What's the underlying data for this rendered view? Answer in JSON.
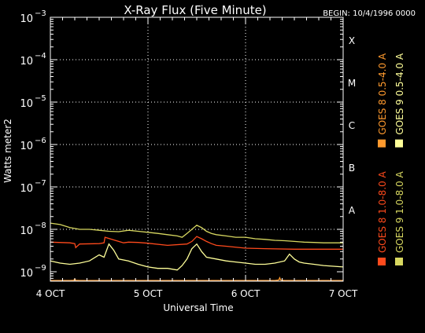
{
  "chart_data": {
    "type": "line",
    "title": "X-Ray Flux (Five Minute)",
    "begin_label": "BEGIN: 10/4/1996 0000",
    "xlabel": "Universal Time",
    "ylabel": "Watts meter2",
    "x_ticks": [
      "4 OCT",
      "5 OCT",
      "6 OCT",
      "7 OCT"
    ],
    "xlim": [
      0,
      3
    ],
    "y_scale": "log",
    "ylim": [
      6e-10,
      0.001
    ],
    "y_ticks": [
      {
        "value": 1e-09,
        "base": "10",
        "exp": "−9"
      },
      {
        "value": 1e-08,
        "base": "10",
        "exp": "−8"
      },
      {
        "value": 1e-07,
        "base": "10",
        "exp": "−7"
      },
      {
        "value": 1e-06,
        "base": "10",
        "exp": "−6"
      },
      {
        "value": 1e-05,
        "base": "10",
        "exp": "−5"
      },
      {
        "value": 0.0001,
        "base": "10",
        "exp": "−4"
      },
      {
        "value": 0.001,
        "base": "10",
        "exp": "−3"
      }
    ],
    "flare_classes": [
      {
        "label": "A",
        "value": 1e-08
      },
      {
        "label": "B",
        "value": 1e-07
      },
      {
        "label": "C",
        "value": 1e-06
      },
      {
        "label": "M",
        "value": 1e-05
      },
      {
        "label": "X",
        "value": 0.0001
      }
    ],
    "grid": {
      "horizontal_at_decades": true,
      "vertical_at_days": true,
      "style": "dotted"
    },
    "series": [
      {
        "name": "GOES 8 1.0-8.0 A",
        "color": "#ff4a1c",
        "x": [
          0.0,
          0.2,
          0.25,
          0.26,
          0.3,
          0.5,
          0.55,
          0.56,
          0.7,
          0.75,
          0.8,
          0.9,
          1.0,
          1.2,
          1.4,
          1.45,
          1.5,
          1.55,
          1.6,
          1.65,
          1.7,
          1.8,
          2.0,
          2.2,
          2.5,
          2.8,
          3.0
        ],
        "y": [
          5e-09,
          4.8e-09,
          4.6e-09,
          3.7e-09,
          4.5e-09,
          4.6e-09,
          4.8e-09,
          6.5e-09,
          5.2e-09,
          4.8e-09,
          5e-09,
          4.9e-09,
          4.7e-09,
          4.2e-09,
          4.5e-09,
          5.2e-09,
          6.8e-09,
          6e-09,
          5.2e-09,
          4.6e-09,
          4.2e-09,
          4e-09,
          3.6e-09,
          3.5e-09,
          3.4e-09,
          3.4e-09,
          3.4e-09
        ]
      },
      {
        "name": "GOES 9 1.0-8.0 A",
        "color": "#d8d860",
        "x": [
          0.0,
          0.1,
          0.2,
          0.3,
          0.4,
          0.5,
          0.6,
          0.7,
          0.8,
          0.9,
          1.0,
          1.1,
          1.2,
          1.3,
          1.35,
          1.4,
          1.45,
          1.5,
          1.55,
          1.6,
          1.65,
          1.7,
          1.8,
          1.9,
          2.0,
          2.1,
          2.2,
          2.3,
          2.4,
          2.5,
          2.6,
          2.7,
          2.8,
          3.0
        ],
        "y": [
          1.4e-08,
          1.3e-08,
          1.1e-08,
          1e-08,
          1e-08,
          9.5e-09,
          9e-09,
          8.8e-09,
          9.5e-09,
          9e-09,
          8.5e-09,
          8e-09,
          7.5e-09,
          7e-09,
          6.5e-09,
          8e-09,
          1e-08,
          1.25e-08,
          1.1e-08,
          9e-09,
          8e-09,
          7.5e-09,
          7e-09,
          6.5e-09,
          6.5e-09,
          6e-09,
          5.8e-09,
          5.5e-09,
          5.4e-09,
          5.2e-09,
          5e-09,
          4.9e-09,
          4.8e-09,
          4.8e-09
        ]
      },
      {
        "name": "GOES 8 0.5-4.0 A",
        "color": "#ff9a2e",
        "x": [
          0.0,
          0.2,
          0.24,
          0.25,
          0.26,
          0.3,
          0.5,
          1.0,
          1.5,
          2.0,
          2.3,
          2.34,
          2.35,
          2.36,
          2.4,
          2.6,
          3.0
        ],
        "y": [
          6.2e-10,
          6.2e-10,
          6.3e-10,
          6.8e-10,
          6.3e-10,
          6.2e-10,
          6.2e-10,
          6.2e-10,
          6.2e-10,
          6.2e-10,
          6.2e-10,
          6.4e-10,
          7.2e-10,
          6.4e-10,
          6.2e-10,
          6.2e-10,
          6.2e-10
        ]
      },
      {
        "name": "GOES 9 0.5-4.0 A",
        "color": "#ffff99",
        "x": [
          0.0,
          0.1,
          0.2,
          0.3,
          0.4,
          0.5,
          0.55,
          0.6,
          0.65,
          0.7,
          0.8,
          0.9,
          1.0,
          1.1,
          1.2,
          1.3,
          1.35,
          1.4,
          1.45,
          1.5,
          1.55,
          1.6,
          1.7,
          1.8,
          1.9,
          2.0,
          2.1,
          2.2,
          2.3,
          2.4,
          2.45,
          2.5,
          2.55,
          2.6,
          2.7,
          2.8,
          2.9,
          3.0
        ],
        "y": [
          1.8e-09,
          1.6e-09,
          1.5e-09,
          1.6e-09,
          1.8e-09,
          2.5e-09,
          2.2e-09,
          4.5e-09,
          3.2e-09,
          2e-09,
          1.8e-09,
          1.5e-09,
          1.3e-09,
          1.2e-09,
          1.2e-09,
          1.1e-09,
          1.4e-09,
          2e-09,
          3.5e-09,
          4.5e-09,
          3e-09,
          2.2e-09,
          2e-09,
          1.8e-09,
          1.7e-09,
          1.6e-09,
          1.5e-09,
          1.5e-09,
          1.6e-09,
          1.8e-09,
          2.6e-09,
          2e-09,
          1.7e-09,
          1.6e-09,
          1.5e-09,
          1.4e-09,
          1.35e-09,
          1.3e-09
        ]
      }
    ],
    "legend": {
      "placement": "right, vertical text",
      "columns": [
        {
          "entries": [
            0,
            2
          ]
        },
        {
          "entries": [
            1,
            3
          ]
        }
      ]
    }
  }
}
